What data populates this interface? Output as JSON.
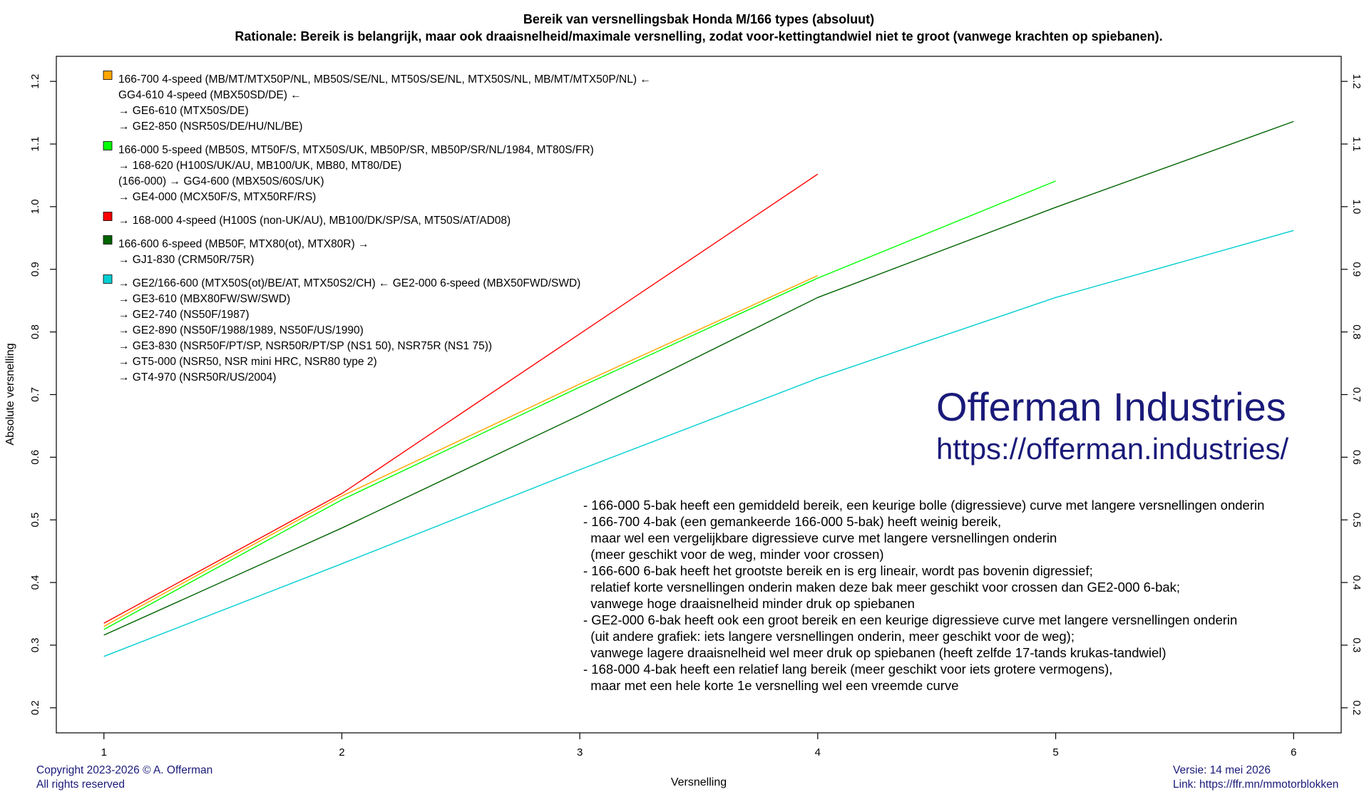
{
  "chart_data": {
    "type": "line",
    "title": "Bereik van versnellingsbak Honda M/166 types (absoluut)",
    "subtitle": "Rationale: Bereik is belangrijk, maar ook draaisnelheid/maximale versnelling, zodat voor-kettingtandwiel niet te groot (vanwege krachten op spiebanen).",
    "xlabel": "Versnelling",
    "ylabel": "Absolute versnelling",
    "xlim": [
      0.8,
      6.2
    ],
    "ylim": [
      0.16,
      1.24
    ],
    "xticks": [
      1,
      2,
      3,
      4,
      5,
      6
    ],
    "yticks": [
      0.2,
      0.3,
      0.4,
      0.5,
      0.6,
      0.7,
      0.8,
      0.9,
      1.0,
      1.1,
      1.2
    ],
    "ytick_labels": [
      "0.2",
      "0.3",
      "0.4",
      "0.5",
      "0.6",
      "0.7",
      "0.8",
      "0.9",
      "1.0",
      "1.1",
      "1.2"
    ],
    "grid": false,
    "legend_position": "top-left",
    "series": [
      {
        "color": "#ff0000",
        "x": [
          1,
          2,
          3,
          4
        ],
        "values": [
          0.335,
          0.542,
          0.797,
          1.052
        ]
      },
      {
        "color": "#ffa500",
        "x": [
          1,
          2,
          3,
          4
        ],
        "values": [
          0.33,
          0.538,
          0.717,
          0.89
        ]
      },
      {
        "color": "#00ff00",
        "x": [
          1,
          2,
          3,
          4,
          5
        ],
        "values": [
          0.325,
          0.532,
          0.712,
          0.886,
          1.041
        ]
      },
      {
        "color": "#006400",
        "x": [
          1,
          2,
          3,
          4,
          5,
          6
        ],
        "values": [
          0.316,
          0.487,
          0.667,
          0.855,
          0.999,
          1.136
        ]
      },
      {
        "color": "#00ced1",
        "x": [
          1,
          2,
          3,
          4,
          5,
          6
        ],
        "values": [
          0.282,
          0.43,
          0.58,
          0.726,
          0.855,
          0.962
        ]
      }
    ],
    "legend": [
      {
        "color": "#ffa500",
        "lines": [
          "166-700 4-speed (MB/MT/MTX50P/NL, MB50S/SE/NL, MT50S/SE/NL, MTX50S/NL, MB/MT/MTX50P/NL) ←",
          "GG4-610 4-speed (MBX50SD/DE) ←",
          "→ GE6-610 (MTX50S/DE)",
          "→ GE2-850 (NSR50S/DE/HU/NL/BE)"
        ]
      },
      {
        "color": "#00ff00",
        "lines": [
          "166-000 5-speed (MB50S, MT50F/S, MTX50S/UK, MB50P/SR, MB50P/SR/NL/1984, MT80S/FR)",
          "→ 168-620 (H100S/UK/AU, MB100/UK, MB80, MT80/DE)",
          "(166-000) → GG4-600 (MBX50S/60S/UK)",
          "→ GE4-000 (MCX50F/S, MTX50RF/RS)"
        ]
      },
      {
        "color": "#ff0000",
        "lines": [
          "→ 168-000 4-speed (H100S (non-UK/AU), MB100/DK/SP/SA, MT50S/AT/AD08)"
        ]
      },
      {
        "color": "#006400",
        "lines": [
          "166-600 6-speed (MB50F, MTX80(ot), MTX80R) →",
          "→ GJ1-830 (CRM50R/75R)"
        ]
      },
      {
        "color": "#00ced1",
        "lines": [
          "→ GE2/166-600 (MTX50S(ot)/BE/AT, MTX50S2/CH) ← GE2-000 6-speed (MBX50FWD/SWD)",
          "→ GE3-610 (MBX80FW/SW/SWD)",
          "→ GE2-740 (NS50F/1987)",
          "→ GE2-890 (NS50F/1988/1989, NS50F/US/1990)",
          "→ GE3-830 (NSR50F/PT/SP, NSR50R/PT/SP (NS1 50), NSR75R (NS1 75))",
          "→ GT5-000 (NSR50, NSR mini HRC, NSR80 type 2)",
          "→ GT4-970 (NSR50R/US/2004)"
        ]
      }
    ],
    "annotations": [
      "- 166-000 5-bak heeft een gemiddeld bereik, een keurige bolle (digressieve) curve met langere versnellingen onderin",
      "- 166-700 4-bak (een gemankeerde 166-000 5-bak) heeft weinig bereik,",
      "  maar wel een vergelijkbare digressieve curve met langere versnellingen onderin",
      "  (meer geschikt voor de weg, minder voor crossen)",
      "- 166-600 6-bak heeft het grootste bereik en is erg lineair, wordt pas bovenin digressief;",
      "  relatief korte versnellingen onderin maken deze bak meer geschikt voor crossen dan GE2-000 6-bak;",
      "  vanwege hoge draaisnelheid minder druk op spiebanen",
      "- GE2-000 6-bak heeft ook een groot bereik en een keurige digressieve curve met langere versnellingen onderin",
      "  (uit andere grafiek: iets langere versnellingen onderin, meer geschikt voor de weg);",
      "  vanwege lagere draaisnelheid wel meer druk op spiebanen (heeft zelfde 17-tands krukas-tandwiel)",
      "- 168-000 4-bak heeft een relatief lang bereik (meer geschikt voor iets grotere vermogens),",
      "  maar met een hele korte 1e versnelling wel een vreemde curve"
    ]
  },
  "branding": {
    "name": "Offerman Industries",
    "url": "https://offerman.industries/"
  },
  "footer": {
    "copyright": "Copyright 2023-2026 © A. Offerman",
    "rights": "All rights reserved",
    "version": "Versie: 14 mei 2026",
    "link": "Link: https://ffr.mn/mmotorblokken"
  }
}
